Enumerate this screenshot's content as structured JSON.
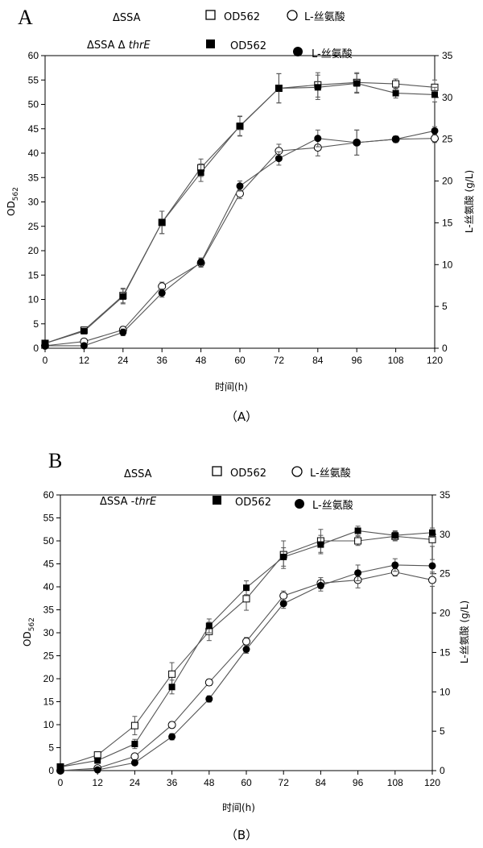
{
  "chart_data": [
    {
      "type": "line",
      "panel_label": "A",
      "caption": "（A）",
      "xlabel": "时间(h)",
      "ylabel": "OD562",
      "y2label": "L-丝氨酸 (g/L)",
      "x": [
        0,
        12,
        24,
        36,
        48,
        60,
        72,
        84,
        96,
        108,
        120
      ],
      "xlim": [
        0,
        120
      ],
      "xticks": [
        "0",
        "12",
        "24",
        "36",
        "48",
        "60",
        "72",
        "84",
        "96",
        "108",
        "120"
      ],
      "ylim": [
        0,
        60
      ],
      "yticks": [
        "0",
        "5",
        "10",
        "15",
        "20",
        "25",
        "30",
        "35",
        "40",
        "45",
        "50",
        "55",
        "60"
      ],
      "y2lim": [
        0,
        35
      ],
      "y2ticks": [
        "0",
        "5",
        "10",
        "15",
        "20",
        "25",
        "30",
        "35"
      ],
      "legend": {
        "strain1": "ΔSSA",
        "strain2_prefix": "ΔSSA Δ ",
        "strain2_gene": "thrE",
        "od_label": "OD562",
        "ser_label": "L-丝氨酸"
      },
      "series": [
        {
          "name": "ΔSSA OD562",
          "axis": "left",
          "marker": "square-open",
          "values": [
            1.0,
            3.7,
            10.8,
            25.8,
            37.0,
            45.5,
            53.3,
            54.0,
            54.5,
            54.2,
            53.5
          ],
          "errors": [
            0.3,
            0.5,
            1.5,
            2.3,
            1.8,
            2.0,
            3.0,
            2.5,
            2.0,
            1.0,
            1.5
          ]
        },
        {
          "name": "ΔSSA ΔthrE OD562",
          "axis": "left",
          "marker": "square-filled",
          "values": [
            1.0,
            3.5,
            10.6,
            25.8,
            36.0,
            45.6,
            53.3,
            53.5,
            54.3,
            52.3,
            52.0
          ],
          "errors": [
            0.3,
            0.5,
            1.5,
            2.3,
            1.8,
            2.0,
            3.0,
            2.5,
            2.0,
            1.0,
            1.5
          ]
        },
        {
          "name": "ΔSSA L-丝氨酸",
          "axis": "right",
          "marker": "circle-open",
          "values": [
            0.3,
            0.8,
            2.2,
            7.4,
            10.2,
            18.5,
            23.6,
            24.0,
            24.6,
            25.0,
            25.1
          ],
          "errors": [
            0.2,
            0.3,
            0.4,
            0.5,
            0.5,
            0.6,
            0.8,
            1.0,
            1.5,
            0.4,
            0.5
          ]
        },
        {
          "name": "ΔSSA ΔthrE L-丝氨酸",
          "axis": "right",
          "marker": "circle-filled",
          "values": [
            0.3,
            0.3,
            1.9,
            6.6,
            10.3,
            19.4,
            22.7,
            25.1,
            24.6,
            25.0,
            26.0
          ],
          "errors": [
            0.2,
            0.3,
            0.4,
            0.5,
            0.5,
            0.6,
            0.8,
            1.0,
            1.5,
            0.4,
            0.5
          ]
        }
      ]
    },
    {
      "type": "line",
      "panel_label": "B",
      "caption": "（B）",
      "xlabel": "时间(h)",
      "ylabel": "OD562",
      "y2label": "L-丝氨酸 (g/L)",
      "x": [
        0,
        12,
        24,
        36,
        48,
        60,
        72,
        84,
        96,
        108,
        120
      ],
      "xlim": [
        0,
        120
      ],
      "xticks": [
        "0",
        "12",
        "24",
        "36",
        "48",
        "60",
        "72",
        "84",
        "96",
        "108",
        "120"
      ],
      "ylim": [
        0,
        60
      ],
      "yticks": [
        "0",
        "5",
        "10",
        "15",
        "20",
        "25",
        "30",
        "35",
        "40",
        "45",
        "50",
        "55",
        "60"
      ],
      "y2lim": [
        0,
        35
      ],
      "y2ticks": [
        "0",
        "5",
        "10",
        "15",
        "20",
        "25",
        "30",
        "35"
      ],
      "legend": {
        "strain1": "ΔSSA",
        "strain2_prefix": "ΔSSA -",
        "strain2_gene": "thrE",
        "od_label": "OD562",
        "ser_label": "L-丝氨酸"
      },
      "series": [
        {
          "name": "ΔSSA OD562",
          "axis": "left",
          "marker": "square-open",
          "values": [
            0.8,
            3.4,
            9.8,
            21.0,
            30.3,
            37.4,
            47.0,
            50.0,
            50.0,
            51.0,
            50.3
          ],
          "errors": [
            0.3,
            0.5,
            2.0,
            2.5,
            2.0,
            2.5,
            3.0,
            2.5,
            1.0,
            1.0,
            1.5
          ]
        },
        {
          "name": "ΔSSA -thrE OD562",
          "axis": "left",
          "marker": "square-filled",
          "values": [
            0.8,
            2.2,
            5.8,
            18.2,
            31.5,
            39.8,
            46.5,
            49.2,
            52.2,
            51.2,
            51.8
          ],
          "errors": [
            0.3,
            0.5,
            1.0,
            1.5,
            1.5,
            1.5,
            2.0,
            2.0,
            1.0,
            1.0,
            1.0
          ]
        },
        {
          "name": "ΔSSA L-丝氨酸",
          "axis": "right",
          "marker": "circle-open",
          "values": [
            0.0,
            0.3,
            1.8,
            5.8,
            11.2,
            16.4,
            22.2,
            23.8,
            24.2,
            25.2,
            24.2
          ],
          "errors": [
            0.1,
            0.2,
            0.3,
            0.4,
            0.4,
            0.5,
            0.6,
            0.7,
            1.0,
            0.5,
            0.8
          ]
        },
        {
          "name": "ΔSSA -thrE L-丝氨酸",
          "axis": "right",
          "marker": "circle-filled",
          "values": [
            0.0,
            0.1,
            1.0,
            4.3,
            9.1,
            15.4,
            21.2,
            23.5,
            25.1,
            26.1,
            26.0
          ],
          "errors": [
            0.1,
            0.2,
            0.3,
            0.4,
            0.4,
            0.5,
            0.6,
            0.7,
            1.0,
            0.8,
            0.8
          ]
        }
      ]
    }
  ]
}
